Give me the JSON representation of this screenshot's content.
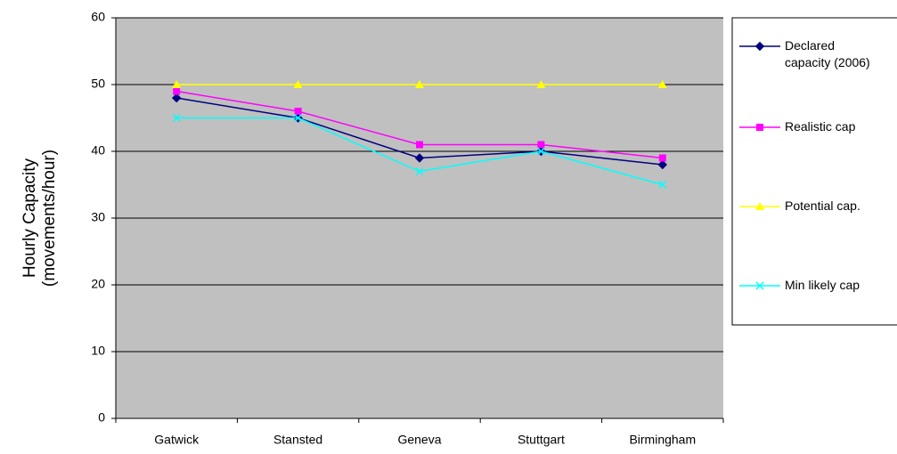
{
  "chart_data": {
    "type": "line",
    "ylabel": [
      "Hourly Capacity",
      "(movements/hour)"
    ],
    "categories": [
      "Gatwick",
      "Stansted",
      "Geneva",
      "Stuttgart",
      "Birmingham"
    ],
    "series": [
      {
        "name": "Declared capacity (2006)",
        "color": "#000080",
        "marker": "diamond",
        "values": [
          48,
          45,
          39,
          40,
          38
        ]
      },
      {
        "name": "Realistic cap",
        "color": "#ff00ff",
        "marker": "square",
        "values": [
          49,
          46,
          41,
          41,
          39
        ]
      },
      {
        "name": "Potential cap.",
        "color": "#ffff00",
        "marker": "triangle",
        "values": [
          50,
          50,
          50,
          50,
          50
        ]
      },
      {
        "name": "Min likely cap",
        "color": "#00ffff",
        "marker": "x",
        "values": [
          45,
          45,
          37,
          40,
          35
        ]
      }
    ],
    "ylim": [
      0,
      60
    ],
    "yticks": [
      0,
      10,
      20,
      30,
      40,
      50,
      60
    ],
    "grid": true,
    "legend": "right"
  }
}
